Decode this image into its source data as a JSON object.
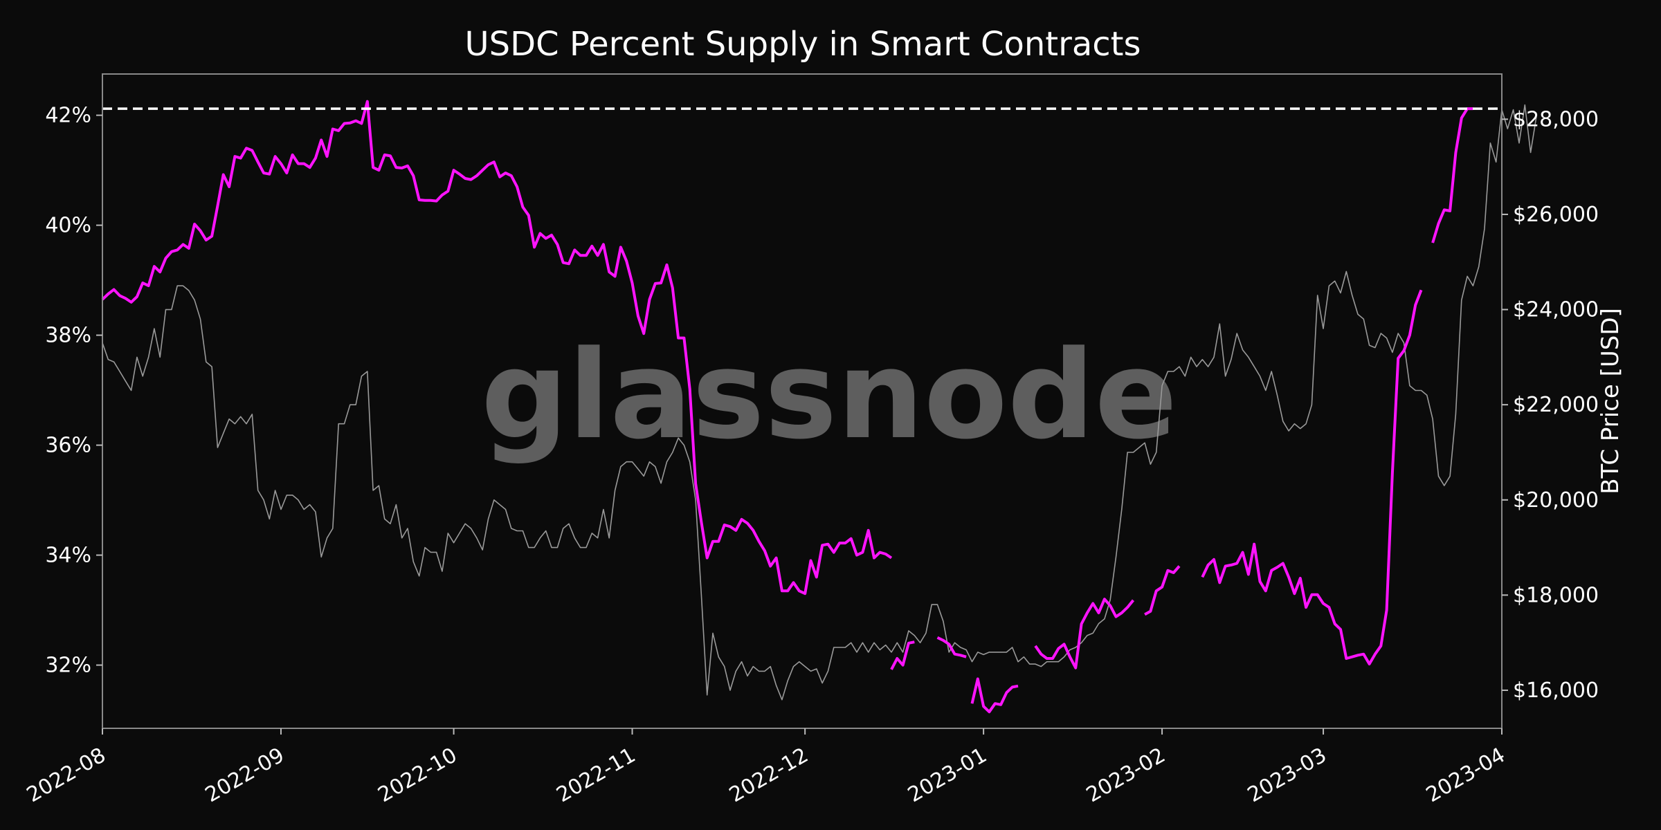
{
  "chart_data": {
    "type": "line",
    "title": "USDC Percent Supply in Smart Contracts",
    "xlabel": "",
    "ylabel_left": "",
    "ylabel_right": "BTC Price [USD]",
    "watermark": "glassnode",
    "x_ticks": [
      "2022-08",
      "2022-09",
      "2022-10",
      "2022-11",
      "2022-12",
      "2023-01",
      "2023-02",
      "2023-03",
      "2023-04"
    ],
    "xlim": [
      "2022-08-01",
      "2023-04-01"
    ],
    "y_left": {
      "lim": [
        30.85,
        42.75
      ],
      "ticks": [
        32,
        34,
        36,
        38,
        40,
        42
      ],
      "tick_labels": [
        "32%",
        "34%",
        "36%",
        "38%",
        "40%",
        "42%"
      ]
    },
    "y_right": {
      "lim": [
        15200,
        28950
      ],
      "ticks": [
        16000,
        18000,
        20000,
        22000,
        24000,
        26000,
        28000
      ],
      "tick_labels": [
        "$16,000",
        "$18,000",
        "$20,000",
        "$22,000",
        "$24,000",
        "$26,000",
        "$28,000"
      ]
    },
    "reference_line": {
      "value": 42.12,
      "axis": "left",
      "style": "dashed",
      "color": "#ffffff"
    },
    "colors": {
      "background": "#0b0b0b",
      "supply_line": "#ff14ff",
      "price_line": "#9a9a9a",
      "axes": "#8a8a8a",
      "watermark": "#5e5e5e"
    },
    "grid": false,
    "series": [
      {
        "axis": "left",
        "color": "#ff14ff",
        "segments": [
          {
            "start": "2022-08-01",
            "values": [
              38.65,
              38.75,
              38.83,
              38.72,
              38.67,
              38.6,
              38.7,
              38.95,
              38.9,
              39.25,
              39.15,
              39.4,
              39.52,
              39.55,
              39.65,
              39.58,
              40.02,
              39.9,
              39.73,
              39.8,
              40.35,
              40.92,
              40.7,
              41.25,
              41.22,
              41.4,
              41.36,
              41.15,
              40.95,
              40.93,
              41.25,
              41.12,
              40.95,
              41.28,
              41.12,
              41.12,
              41.05,
              41.22,
              41.55,
              41.25,
              41.75,
              41.72,
              41.85,
              41.86,
              41.9,
              41.85,
              42.25,
              41.05,
              41.0,
              41.28,
              41.26,
              41.05,
              41.04,
              41.08,
              40.9,
              40.46,
              40.45,
              40.45,
              40.44,
              40.55,
              40.62,
              41.0,
              40.93,
              40.85,
              40.83,
              40.9,
              41.0,
              41.1,
              41.15,
              40.88,
              40.95,
              40.9,
              40.7,
              40.33,
              40.18,
              39.6,
              39.85,
              39.76,
              39.82,
              39.65,
              39.32,
              39.3,
              39.55,
              39.45,
              39.45,
              39.62,
              39.45,
              39.65,
              39.15,
              39.07,
              39.6,
              39.35,
              38.95,
              38.35,
              38.03,
              38.65,
              38.94,
              38.95,
              39.28,
              38.86,
              37.95,
              37.95,
              37.02,
              35.3,
              34.6,
              33.95,
              34.25,
              34.25,
              34.55,
              34.52,
              34.45,
              34.65,
              34.58,
              34.45,
              34.25,
              34.08,
              33.8,
              33.95,
              33.35,
              33.35,
              33.5,
              33.35,
              33.3,
              33.9,
              33.6,
              34.18,
              34.2,
              34.05,
              34.22,
              34.22,
              34.3,
              34.0,
              34.05,
              34.45,
              33.95,
              34.05,
              34.02,
              33.95
            ]
          },
          {
            "start": "2022-12-16",
            "values": [
              31.92,
              32.12,
              32.0,
              32.4,
              32.42
            ]
          },
          {
            "start": "2022-12-24",
            "values": [
              32.5,
              32.45,
              32.38,
              32.2,
              32.18,
              32.15
            ]
          },
          {
            "start": "2022-12-30",
            "values": [
              31.3,
              31.75,
              31.25,
              31.15,
              31.3,
              31.28,
              31.5,
              31.6,
              31.62
            ]
          },
          {
            "start": "2023-01-10",
            "values": [
              32.35,
              32.2,
              32.12,
              32.12,
              32.3,
              32.38,
              32.15,
              31.95,
              32.75,
              32.95,
              33.12,
              32.95,
              33.2,
              33.08,
              32.88,
              32.95,
              33.05,
              33.18
            ]
          },
          {
            "start": "2023-01-29",
            "values": [
              32.92,
              32.98,
              33.35,
              33.42,
              33.72,
              33.68,
              33.8
            ]
          },
          {
            "start": "2023-02-08",
            "values": [
              33.6,
              33.82,
              33.92,
              33.5,
              33.8,
              33.82,
              33.85,
              34.05,
              33.65,
              34.2,
              33.52,
              33.35,
              33.72,
              33.78,
              33.85,
              33.6,
              33.3,
              33.58,
              33.05,
              33.28,
              33.28,
              33.12,
              33.05,
              32.75,
              32.65,
              32.12,
              32.15,
              32.18,
              32.2,
              32.02,
              32.2,
              32.35,
              33.0,
              35.5,
              37.58,
              37.72,
              38.0,
              38.55,
              38.82
            ]
          },
          {
            "start": "2023-03-20",
            "values": [
              39.68,
              40.03,
              40.28,
              40.26,
              41.32,
              41.95,
              42.12,
              42.12
            ]
          }
        ]
      },
      {
        "axis": "right",
        "color": "#9a9a9a",
        "segments": [
          {
            "start": "2022-08-01",
            "values": [
              23.3,
              22.95,
              22.9,
              22.7,
              22.5,
              22.3,
              23.0,
              22.6,
              23.0,
              23.6,
              23.0,
              24.0,
              24.0,
              24.5,
              24.5,
              24.4,
              24.2,
              23.8,
              22.9,
              22.8,
              21.1,
              21.4,
              21.7,
              21.6,
              21.75,
              21.6,
              21.8,
              20.2,
              20.0,
              19.6,
              20.2,
              19.8,
              20.1,
              20.1,
              20.0,
              19.8,
              19.9,
              19.75,
              18.8,
              19.2,
              19.4,
              21.6,
              21.6,
              22.0,
              22.0,
              22.6,
              22.7,
              20.2,
              20.3,
              19.6,
              19.5,
              19.9,
              19.2,
              19.4,
              18.7,
              18.4,
              19.0,
              18.9,
              18.9,
              18.5,
              19.3,
              19.1,
              19.3,
              19.5,
              19.4,
              19.2,
              18.95,
              19.6,
              20.0,
              19.9,
              19.8,
              19.4,
              19.35,
              19.35,
              19.0,
              19.0,
              19.2,
              19.35,
              19.0,
              19.0,
              19.4,
              19.5,
              19.2,
              19.0,
              19.0,
              19.3,
              19.2,
              19.8,
              19.2,
              20.2,
              20.7,
              20.8,
              20.8,
              20.65,
              20.5,
              20.8,
              20.7,
              20.35,
              20.8,
              21.0,
              21.3,
              21.15,
              20.8,
              20.0,
              18.0,
              15.9,
              17.2,
              16.7,
              16.5,
              16.0,
              16.4,
              16.6,
              16.3,
              16.5,
              16.4,
              16.4,
              16.5,
              16.1,
              15.8,
              16.2,
              16.5,
              16.6,
              16.5,
              16.4,
              16.45,
              16.15,
              16.4,
              16.9,
              16.9,
              16.9,
              17.0,
              16.8,
              17.0,
              16.8,
              17.0,
              16.85,
              16.95,
              16.8,
              17.0,
              16.8,
              17.25,
              17.15,
              17.0,
              17.2,
              17.8,
              17.8,
              17.45,
              16.8,
              17.0,
              16.9,
              16.85,
              16.6,
              16.8,
              16.75,
              16.8,
              16.8,
              16.8,
              16.8,
              16.9,
              16.6,
              16.7,
              16.55,
              16.55,
              16.5,
              16.6,
              16.6,
              16.6,
              16.7,
              16.85,
              16.9,
              17.0,
              17.15,
              17.2,
              17.4,
              17.5,
              17.9,
              18.8,
              19.8,
              21.0,
              21.0,
              21.1,
              21.2,
              20.75,
              21.0,
              22.4,
              22.7,
              22.7,
              22.8,
              22.6,
              23.0,
              22.8,
              22.95,
              22.8,
              23.0,
              23.7,
              22.6,
              22.95,
              23.5,
              23.15,
              23.0,
              22.8,
              22.6,
              22.3,
              22.7,
              22.2,
              21.65,
              21.45,
              21.6,
              21.5,
              21.6,
              22.0,
              24.3,
              23.6,
              24.5,
              24.6,
              24.35,
              24.8,
              24.3,
              23.9,
              23.8,
              23.25,
              23.2,
              23.5,
              23.4,
              23.1,
              23.5,
              23.3,
              22.4,
              22.3,
              22.3,
              22.2,
              21.7,
              20.5,
              20.3,
              20.5,
              21.8,
              24.2,
              24.7,
              24.5,
              24.9,
              25.7,
              27.5,
              27.1,
              28.2,
              27.8,
              28.2,
              27.5,
              28.3,
              27.3,
              28.05
            ]
          }
        ]
      }
    ]
  }
}
